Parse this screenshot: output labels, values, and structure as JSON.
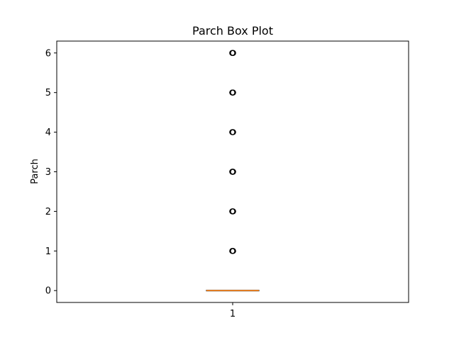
{
  "chart_data": {
    "type": "box",
    "title": "Parch Box Plot",
    "xlabel": "",
    "ylabel": "Parch",
    "categories": [
      "1"
    ],
    "ylim": [
      -0.3,
      6.3
    ],
    "yticks": [
      0,
      1,
      2,
      3,
      4,
      5,
      6
    ],
    "yticklabels": [
      "0",
      "1",
      "2",
      "3",
      "4",
      "5",
      "6"
    ],
    "box": {
      "whisker_low": 0,
      "q1": 0,
      "median": 0,
      "q3": 0,
      "whisker_high": 0
    },
    "outliers": [
      1,
      2,
      3,
      4,
      5,
      6
    ],
    "median_color": "#ff7f0e",
    "outlier_color": "#000000",
    "grid": false,
    "legend": "none"
  }
}
